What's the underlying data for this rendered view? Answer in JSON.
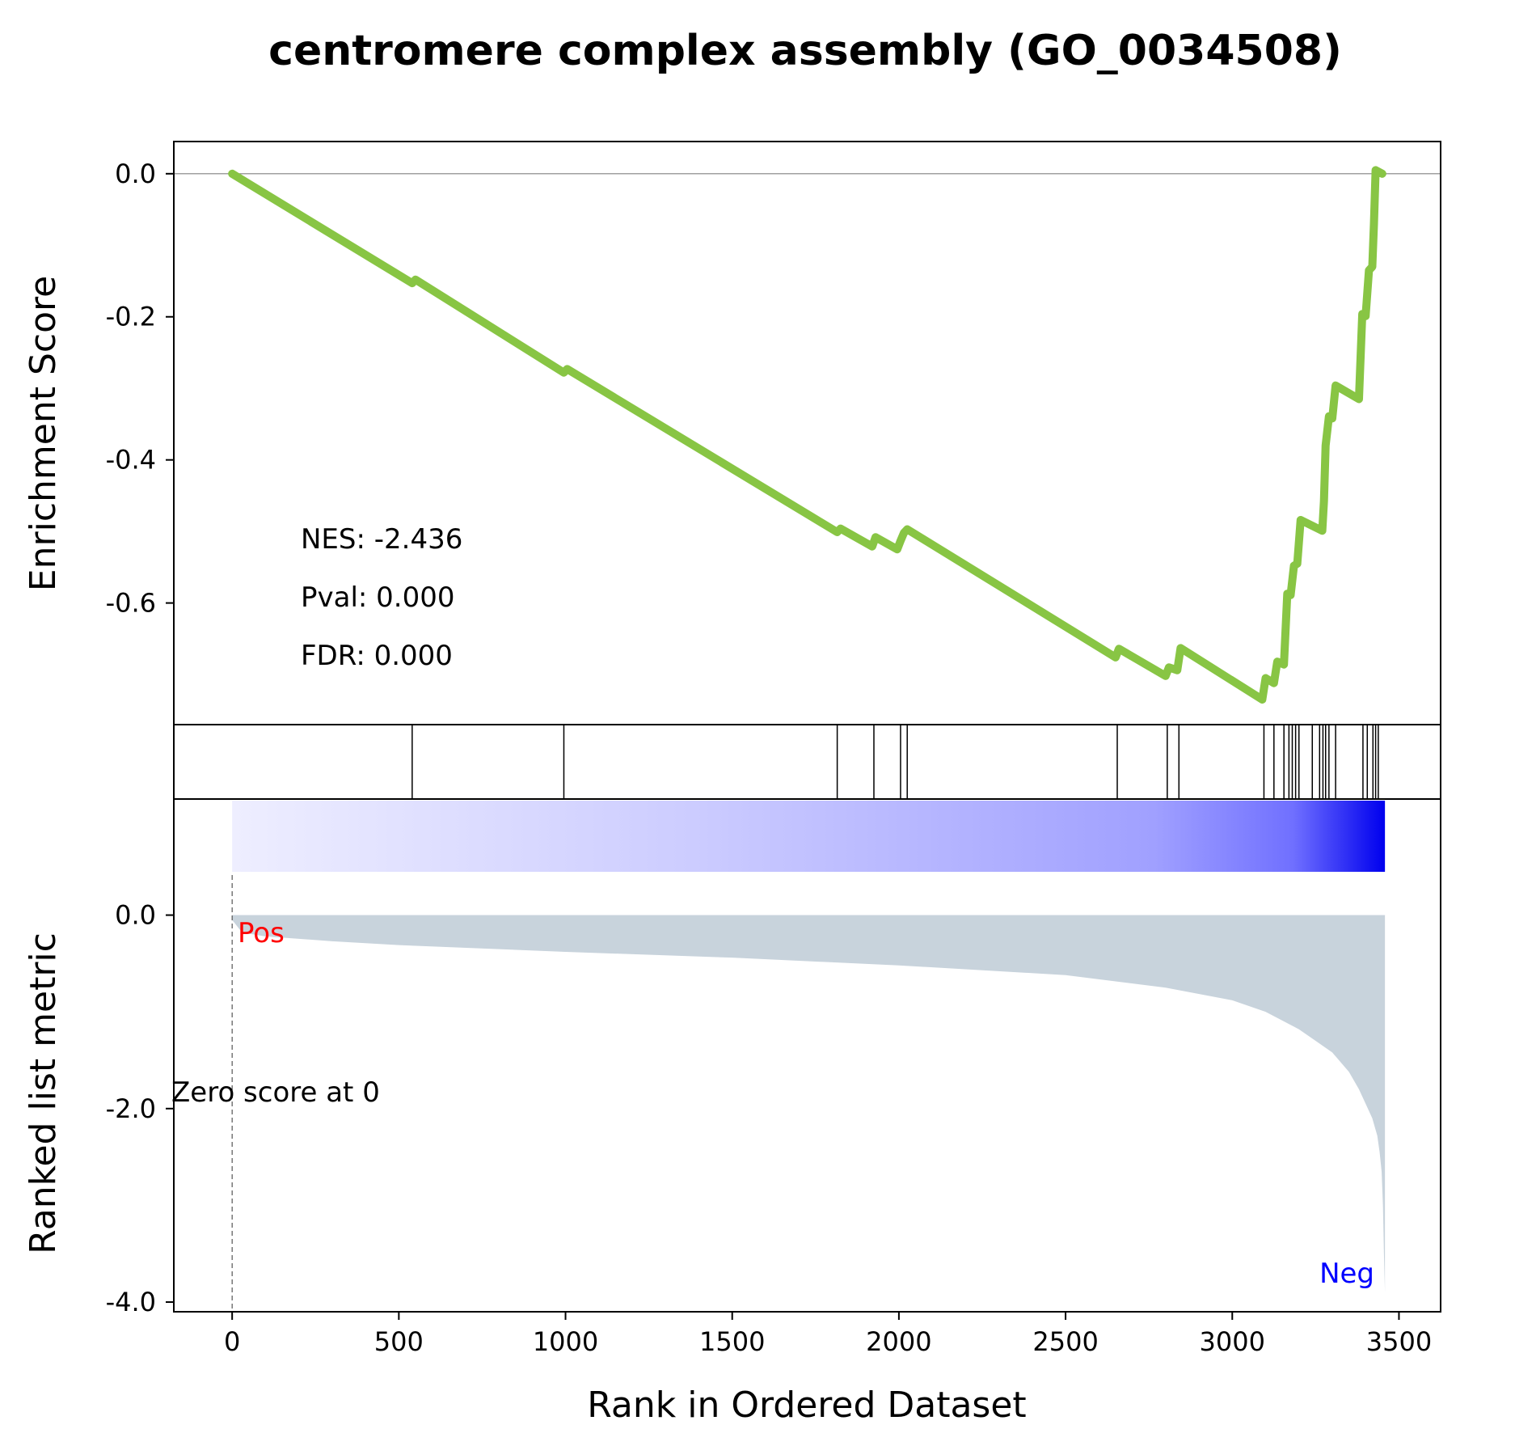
{
  "chart_data": {
    "type": "line",
    "title": "centromere complex assembly (GO_0034508)",
    "enrichment_panel": {
      "ylabel": "Enrichment Score",
      "yticks": [
        0.0,
        -0.2,
        -0.4,
        -0.6
      ],
      "yticks_labels": [
        "0.0",
        "-0.2",
        "-0.4",
        "-0.6"
      ],
      "ylim": [
        -0.77,
        0.045
      ],
      "line_color": "#88c544",
      "series": [
        {
          "x": [
            0,
            540,
            550,
            995,
            1005,
            1815,
            1825,
            1920,
            1930,
            1995,
            2005,
            2015,
            2025,
            2650,
            2660,
            2800,
            2810,
            2835,
            2845,
            3090,
            3100,
            3125,
            3135,
            3155,
            3165,
            3175,
            3185,
            3195,
            3205,
            3270,
            3275,
            3280,
            3290,
            3300,
            3310,
            3380,
            3390,
            3400,
            3410,
            3420,
            3425,
            3430,
            3450
          ],
          "y": [
            0.0,
            -0.153,
            -0.148,
            -0.278,
            -0.273,
            -0.501,
            -0.496,
            -0.521,
            -0.508,
            -0.525,
            -0.513,
            -0.502,
            -0.497,
            -0.676,
            -0.664,
            -0.702,
            -0.69,
            -0.694,
            -0.663,
            -0.735,
            -0.705,
            -0.712,
            -0.682,
            -0.686,
            -0.587,
            -0.589,
            -0.548,
            -0.545,
            -0.484,
            -0.499,
            -0.458,
            -0.38,
            -0.339,
            -0.342,
            -0.296,
            -0.315,
            -0.196,
            -0.199,
            -0.135,
            -0.13,
            -0.07,
            0.005,
            0.0
          ]
        }
      ],
      "stats": [
        "NES: -2.436",
        "Pval: 0.000",
        "FDR: 0.000"
      ]
    },
    "hits_panel": {
      "hit_positions": [
        540,
        995,
        1815,
        1925,
        2005,
        2025,
        2655,
        2805,
        2840,
        3095,
        3125,
        3155,
        3170,
        3180,
        3190,
        3200,
        3240,
        3262,
        3272,
        3280,
        3290,
        3310,
        3392,
        3405,
        3422,
        3430,
        3438
      ]
    },
    "metric_panel": {
      "ylabel": "Ranked list metric",
      "xlabel": "Rank in Ordered Dataset",
      "yticks": [
        0.0,
        -2.0,
        -4.0
      ],
      "yticks_labels": [
        "0.0",
        "-2.0",
        "-4.0"
      ],
      "ylim": [
        -4.1,
        1.2
      ],
      "fill_color": "#c8d3dc",
      "metric": {
        "x": [
          0,
          30,
          100,
          300,
          500,
          1000,
          1500,
          2000,
          2500,
          2800,
          3000,
          3100,
          3200,
          3250,
          3300,
          3350,
          3380,
          3400,
          3420,
          3435,
          3442,
          3448,
          3452,
          3455,
          3458
        ],
        "y": [
          -0.05,
          -0.18,
          -0.22,
          -0.27,
          -0.31,
          -0.38,
          -0.44,
          -0.52,
          -0.62,
          -0.75,
          -0.88,
          -1.0,
          -1.18,
          -1.3,
          -1.42,
          -1.62,
          -1.8,
          -1.95,
          -2.1,
          -2.28,
          -2.45,
          -2.65,
          -3.0,
          -3.5,
          -3.9
        ]
      },
      "gradient_bar": {
        "color_start": "#eeeeff",
        "color_end": "#0000ee",
        "x_end": 3458
      },
      "pos_label": "Pos",
      "pos_color": "#ff0000",
      "neg_label": "Neg",
      "neg_color": "#0000ff",
      "zero_label": "Zero score at 0",
      "zero_rank": 0
    },
    "xaxis": {
      "xlim": [
        -175,
        3625
      ],
      "xticks": [
        0,
        500,
        1000,
        1500,
        2000,
        2500,
        3000,
        3500
      ],
      "xticks_labels": [
        "0",
        "500",
        "1000",
        "1500",
        "2000",
        "2500",
        "3000",
        "3500"
      ]
    }
  }
}
